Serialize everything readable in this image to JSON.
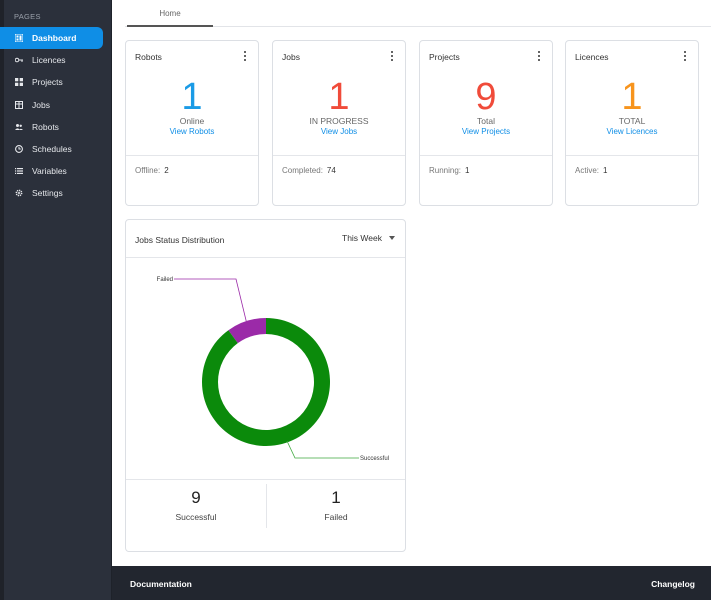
{
  "sidebar": {
    "section_label": "PAGES",
    "items": [
      {
        "label": "Dashboard",
        "icon": "dashboard-icon",
        "active": true
      },
      {
        "label": "Licences",
        "icon": "key-icon"
      },
      {
        "label": "Projects",
        "icon": "grid-icon"
      },
      {
        "label": "Jobs",
        "icon": "table-icon"
      },
      {
        "label": "Robots",
        "icon": "users-icon"
      },
      {
        "label": "Schedules",
        "icon": "clock-icon"
      },
      {
        "label": "Variables",
        "icon": "list-icon"
      },
      {
        "label": "Settings",
        "icon": "gear-icon"
      }
    ]
  },
  "tabs": [
    {
      "label": "Home"
    }
  ],
  "cards": [
    {
      "title": "Robots",
      "value": "1",
      "sub": "Online",
      "link": "View Robots",
      "foot_label": "Offline:",
      "foot_value": "2",
      "color": "#1a9be6"
    },
    {
      "title": "Jobs",
      "value": "1",
      "sub": "IN PROGRESS",
      "link": "View Jobs",
      "foot_label": "Completed:",
      "foot_value": "74",
      "color": "#f04b3a"
    },
    {
      "title": "Projects",
      "value": "9",
      "sub": "Total",
      "link": "View Projects",
      "foot_label": "Running:",
      "foot_value": "1",
      "color": "#f04b3a"
    },
    {
      "title": "Licences",
      "value": "1",
      "sub": "TOTAL",
      "link": "View Licences",
      "foot_label": "Active:",
      "foot_value": "1",
      "color": "#f7941d"
    }
  ],
  "distribution": {
    "title": "Jobs Status Distribution",
    "period": "This Week",
    "summary": [
      {
        "value": "9",
        "label": "Successful"
      },
      {
        "value": "1",
        "label": "Failed"
      }
    ]
  },
  "chart_data": {
    "type": "pie",
    "donut": true,
    "categories": [
      "Successful",
      "Failed"
    ],
    "values": [
      9,
      1
    ],
    "colors": [
      "#0b8a0b",
      "#9b2aa8"
    ],
    "title": "Jobs Status Distribution"
  },
  "footer": {
    "left_link": "Documentation",
    "right_link": "Changelog"
  }
}
